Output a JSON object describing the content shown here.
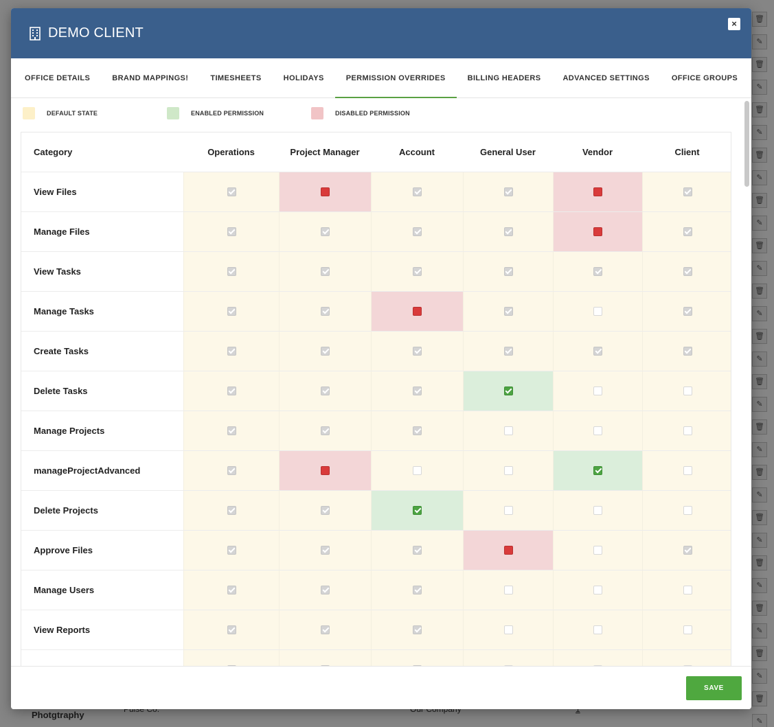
{
  "modal": {
    "title": "DEMO CLIENT",
    "close_label": "×",
    "title_icon": "building-icon"
  },
  "tabs": [
    {
      "label": "OFFICE DETAILS",
      "active": false
    },
    {
      "label": "BRAND MAPPINGS!",
      "active": false
    },
    {
      "label": "TIMESHEETS",
      "active": false
    },
    {
      "label": "HOLIDAYS",
      "active": false
    },
    {
      "label": "PERMISSION OVERRIDES",
      "active": true
    },
    {
      "label": "BILLING HEADERS",
      "active": false
    },
    {
      "label": "ADVANCED SETTINGS",
      "active": false
    },
    {
      "label": "OFFICE GROUPS",
      "active": false
    }
  ],
  "legend": [
    {
      "label": "DEFAULT STATE",
      "color": "#fdf0c8"
    },
    {
      "label": "ENABLED PERMISSION",
      "color": "#cfe8c8"
    },
    {
      "label": "DISABLED PERMISSION",
      "color": "#f1c4c6"
    }
  ],
  "table": {
    "category_header": "Category",
    "columns": [
      "Operations",
      "Project Manager",
      "Account",
      "General User",
      "Vendor",
      "Client"
    ],
    "rows": [
      {
        "category": "View Files",
        "cells": [
          "d",
          "x",
          "d",
          "d",
          "x",
          "d"
        ]
      },
      {
        "category": "Manage Files",
        "cells": [
          "d",
          "d",
          "d",
          "d",
          "x",
          "d"
        ]
      },
      {
        "category": "View Tasks",
        "cells": [
          "d",
          "d",
          "d",
          "d",
          "d",
          "d"
        ]
      },
      {
        "category": "Manage Tasks",
        "cells": [
          "d",
          "d",
          "x",
          "d",
          "u",
          "d"
        ]
      },
      {
        "category": "Create Tasks",
        "cells": [
          "d",
          "d",
          "d",
          "d",
          "d",
          "d"
        ]
      },
      {
        "category": "Delete Tasks",
        "cells": [
          "d",
          "d",
          "d",
          "e",
          "u",
          "u"
        ]
      },
      {
        "category": "Manage Projects",
        "cells": [
          "d",
          "d",
          "d",
          "u",
          "u",
          "u"
        ]
      },
      {
        "category": "manageProjectAdvanced",
        "cells": [
          "d",
          "x",
          "u",
          "u",
          "e",
          "u"
        ]
      },
      {
        "category": "Delete Projects",
        "cells": [
          "d",
          "d",
          "e",
          "u",
          "u",
          "u"
        ]
      },
      {
        "category": "Approve Files",
        "cells": [
          "d",
          "d",
          "d",
          "x",
          "u",
          "d"
        ]
      },
      {
        "category": "Manage Users",
        "cells": [
          "d",
          "d",
          "d",
          "u",
          "u",
          "u"
        ]
      },
      {
        "category": "View Reports",
        "cells": [
          "d",
          "d",
          "d",
          "u",
          "u",
          "u"
        ]
      },
      {
        "category": "",
        "cells": [
          "d",
          "d",
          "d",
          "u",
          "u",
          "u"
        ]
      }
    ]
  },
  "footer": {
    "save_label": "SAVE"
  },
  "background": {
    "row_label": "Photgtraphy",
    "company_a": "Pulse Co.",
    "company_b": "Our Company",
    "count": "1"
  },
  "colors": {
    "header": "#3a5f8c",
    "accent_green": "#4fa83f",
    "disabled_red": "#d93b3b"
  }
}
